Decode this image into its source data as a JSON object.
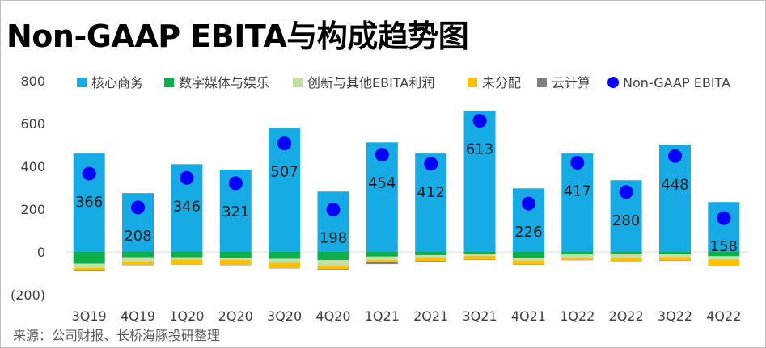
{
  "title": "Non-GAAP EBITA与构成趋势图",
  "source": "来源：公司财报、长桥海豚投研整理",
  "colors": {
    "core_commerce": "#16ABE4",
    "digital_media": "#0DAF4A",
    "innovation_other": "#C2DFA6",
    "unallocated": "#FFC000",
    "cloud": "#7F7F7F",
    "non_gaap_ebita": "#0000FF",
    "negative_tick": "#C00000"
  },
  "chart_data": {
    "type": "bar",
    "stacked": true,
    "title": "Non-GAAP EBITA与构成趋势图",
    "categories": [
      "3Q19",
      "4Q19",
      "1Q20",
      "2Q20",
      "3Q20",
      "4Q20",
      "1Q21",
      "2Q21",
      "3Q21",
      "4Q21",
      "1Q22",
      "2Q22",
      "3Q22",
      "4Q22"
    ],
    "y_ticks": [
      "800",
      "600",
      "400",
      "200",
      "0",
      "(200)"
    ],
    "ylim": [
      -200,
      800
    ],
    "series": [
      {
        "name": "核心商务",
        "key": "core_commerce",
        "values": [
          460,
          275,
          410,
          385,
          580,
          282,
          512,
          460,
          660,
          297,
          460,
          335,
          502,
          233
        ]
      },
      {
        "name": "数字媒体与娱乐",
        "key": "digital_media",
        "values": [
          -55,
          -25,
          -25,
          -28,
          -32,
          -38,
          -22,
          -15,
          -8,
          -28,
          -12,
          -8,
          -12,
          -20
        ]
      },
      {
        "name": "创新与其他EBITA利润",
        "key": "innovation_other",
        "values": [
          -20,
          -20,
          -10,
          -10,
          -18,
          -28,
          -15,
          -15,
          -10,
          -12,
          -15,
          -22,
          -12,
          -15
        ]
      },
      {
        "name": "未分配",
        "key": "unallocated",
        "values": [
          -12,
          -15,
          -22,
          -22,
          -25,
          -14,
          -10,
          -12,
          -18,
          -18,
          -10,
          -12,
          -16,
          -30
        ]
      },
      {
        "name": "云计算",
        "key": "cloud",
        "values": [
          -3,
          -2,
          -2,
          -2,
          -2,
          -3,
          -10,
          -3,
          -2,
          -2,
          -1,
          -1,
          -1,
          -1
        ]
      }
    ],
    "line_series": {
      "name": "Non-GAAP EBITA",
      "key": "non_gaap_ebita",
      "values": [
        366,
        208,
        346,
        321,
        507,
        198,
        454,
        412,
        613,
        226,
        417,
        280,
        448,
        158
      ]
    },
    "data_labels": [
      "366",
      "208",
      "346",
      "321",
      "507",
      "198",
      "454",
      "412",
      "613",
      "226",
      "417",
      "280",
      "448",
      "158"
    ],
    "legend_position": "top"
  }
}
